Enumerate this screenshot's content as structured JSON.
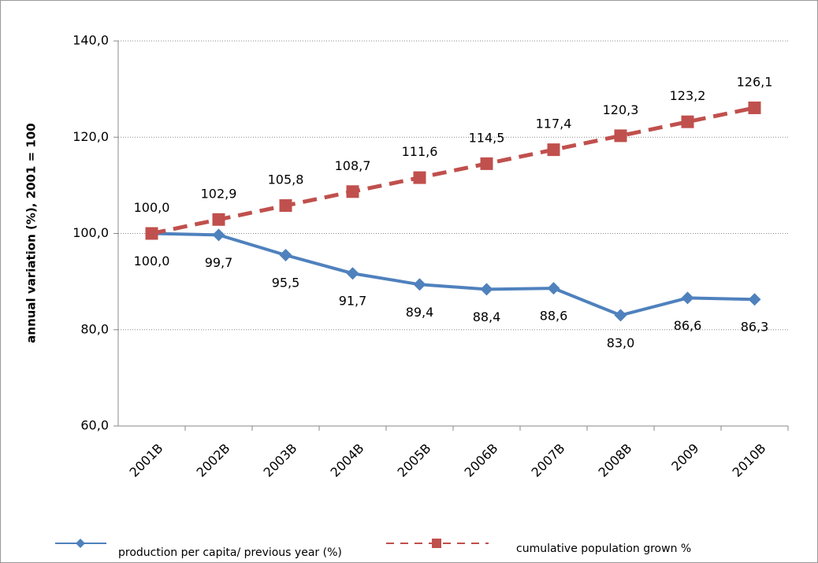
{
  "chart_data": {
    "type": "line",
    "y_label": "annual variation  (%), 2001 = 100",
    "categories": [
      "2001B",
      "2002B",
      "2003B",
      "2004B",
      "2005B",
      "2006B",
      "2007B",
      "2008B",
      "2009",
      "2010B"
    ],
    "series": [
      {
        "name": "production per capita/ previous year (%)",
        "color": "#4f81bd",
        "values": [
          100.0,
          99.7,
          95.5,
          91.7,
          89.4,
          88.4,
          88.6,
          83.0,
          86.6,
          86.3
        ],
        "value_labels": [
          "100,0",
          "99,7",
          "95,5",
          "91,7",
          "89,4",
          "88,4",
          "88,6",
          "83,0",
          "86,6",
          "86,3"
        ]
      },
      {
        "name": "cumulative population grown %",
        "color": "#c0504d",
        "values": [
          100.0,
          102.9,
          105.8,
          108.7,
          111.6,
          114.5,
          117.4,
          120.3,
          123.2,
          126.1
        ],
        "value_labels": [
          "100,0",
          "102,9",
          "105,8",
          "108,7",
          "111,6",
          "114,5",
          "117,4",
          "120,3",
          "123,2",
          "126,1"
        ]
      }
    ],
    "ylim": [
      60,
      140
    ],
    "yticks": [
      {
        "value": 60,
        "label": "60,0"
      },
      {
        "value": 80,
        "label": "80,0"
      },
      {
        "value": 100,
        "label": "100,0"
      },
      {
        "value": 120,
        "label": "120,0"
      },
      {
        "value": 140,
        "label": "140,0"
      }
    ],
    "grid": true
  }
}
